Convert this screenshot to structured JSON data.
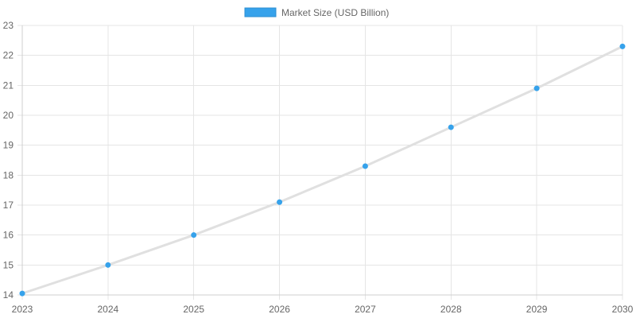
{
  "chart_data": {
    "type": "line",
    "x": [
      2023,
      2024,
      2025,
      2026,
      2027,
      2028,
      2029,
      2030
    ],
    "series": [
      {
        "name": "Market Size (USD Billion)",
        "values": [
          14.05,
          15.0,
          16.0,
          17.1,
          18.3,
          19.6,
          20.9,
          22.3
        ]
      }
    ],
    "xlim": [
      2023,
      2030
    ],
    "ylim": [
      14,
      23
    ],
    "yticks": [
      14,
      15,
      16,
      17,
      18,
      19,
      20,
      21,
      22,
      23
    ],
    "xticks": [
      2023,
      2024,
      2025,
      2026,
      2027,
      2028,
      2029,
      2030
    ],
    "grid": true,
    "legend_position": "top-center",
    "colors": {
      "line": "#e0e0e0",
      "point": "#36a2eb",
      "legend_fill": "#36a2eb",
      "legend_stroke": "#2f8fd2",
      "grid": "#e5e5e5",
      "axis": "#cfcfcf"
    }
  }
}
